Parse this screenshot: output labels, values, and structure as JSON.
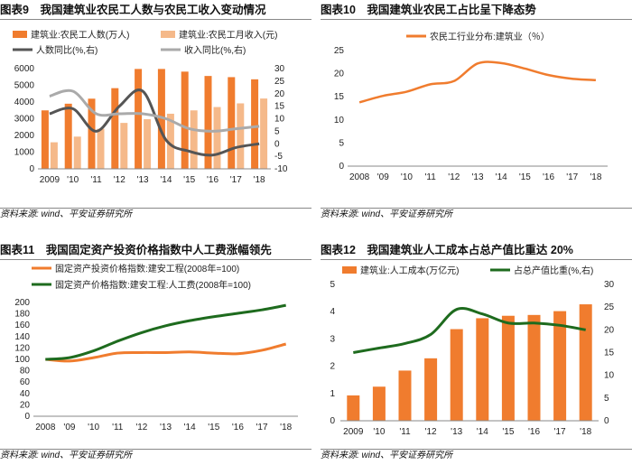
{
  "source_text": "资料来源: wind、平安证券研究所",
  "chart_data": [
    {
      "id": "fig9",
      "type": "bar",
      "title": "图表9　我国建筑业农民工人数与农民工收入变动情况",
      "categories": [
        "2009",
        "'10",
        "'11",
        "'12",
        "'13",
        "'14",
        "'15",
        "'16",
        "'17",
        "'18"
      ],
      "left_axis": {
        "ylim": [
          0,
          6000
        ],
        "ticks": [
          "0",
          "1000",
          "2000",
          "3000",
          "4000",
          "5000",
          "6000"
        ]
      },
      "right_axis": {
        "ylim": [
          -10,
          30
        ],
        "ticks": [
          "-10",
          "-5",
          "0",
          "5",
          "10",
          "15",
          "20",
          "25",
          "30"
        ]
      },
      "series": [
        {
          "name": "建筑业:农民工人数(万人)",
          "kind": "bar",
          "axis": "left",
          "color": "#F07C2E",
          "values": [
            3500,
            3900,
            4200,
            4830,
            5980,
            5980,
            5820,
            5560,
            5490,
            5360
          ]
        },
        {
          "name": "建筑业:农民工月收入(元)",
          "kind": "bar",
          "axis": "left",
          "color": "#F5B98A",
          "values": [
            1590,
            1930,
            2400,
            2750,
            2970,
            3300,
            3500,
            3700,
            3920,
            4210
          ]
        },
        {
          "name": "人数同比(%,右)",
          "kind": "line",
          "axis": "right",
          "color": "#555555",
          "values": [
            12,
            14,
            5,
            15,
            21,
            1.5,
            -3,
            -4.5,
            -1.5,
            0
          ]
        },
        {
          "name": "收入同比(%,右)",
          "kind": "line",
          "axis": "right",
          "color": "#AAAAAA",
          "values": [
            19,
            21,
            12,
            12,
            12,
            10,
            6,
            5,
            6,
            7
          ]
        }
      ]
    },
    {
      "id": "fig10",
      "type": "line",
      "title": "图表10　我国建筑业农民工占比呈下降态势",
      "categories": [
        "2008",
        "'09",
        "'10",
        "'11",
        "'12",
        "'13",
        "'14",
        "'15",
        "'16",
        "'17",
        "'18"
      ],
      "ylim": [
        0,
        25
      ],
      "yticks": [
        "0",
        "5",
        "10",
        "15",
        "20",
        "25"
      ],
      "series": [
        {
          "name": "农民工行业分布:建筑业（％）",
          "color": "#F07C2E",
          "values": [
            13.8,
            15.2,
            16.1,
            17.7,
            18.4,
            22.2,
            22.3,
            21.1,
            19.7,
            18.9,
            18.6
          ]
        }
      ]
    },
    {
      "id": "fig11",
      "type": "line",
      "title": "图表11　我国固定资产投资价格指数中人工费涨幅领先",
      "categories": [
        "2008",
        "'09",
        "'10",
        "'11",
        "'12",
        "'13",
        "'14",
        "'15",
        "'16",
        "'17",
        "'18"
      ],
      "ylim": [
        0,
        200
      ],
      "yticks": [
        "0",
        "20",
        "40",
        "60",
        "80",
        "100",
        "120",
        "140",
        "160",
        "180",
        "200"
      ],
      "series": [
        {
          "name": "固定资产投资价格指数:建安工程(2008年=100)",
          "color": "#F07C2E",
          "values": [
            100,
            97,
            103,
            111,
            112,
            112,
            113,
            111,
            110,
            116,
            127
          ]
        },
        {
          "name": "固定资产价格指数:建安工程:人工费(2008年=100)",
          "color": "#1E6B1E",
          "values": [
            100,
            103,
            115,
            132,
            147,
            159,
            168,
            175,
            181,
            187,
            195
          ]
        }
      ]
    },
    {
      "id": "fig12",
      "type": "bar",
      "title": "图表12　我国建筑业人工成本占总产值比重达 20%",
      "categories": [
        "2009",
        "'10",
        "'11",
        "'12",
        "'13",
        "'14",
        "'15",
        "'16",
        "'17",
        "'18"
      ],
      "left_axis": {
        "ylim": [
          0,
          5
        ],
        "ticks": [
          "0",
          "1",
          "2",
          "3",
          "4",
          "5"
        ]
      },
      "right_axis": {
        "ylim": [
          0,
          30
        ],
        "ticks": [
          "0",
          "5",
          "10",
          "15",
          "20",
          "25",
          "30"
        ]
      },
      "series": [
        {
          "name": "建筑业:人工成本(万亿元)",
          "kind": "bar",
          "axis": "left",
          "color": "#F07C2E",
          "values": [
            0.93,
            1.25,
            1.84,
            2.29,
            3.36,
            3.76,
            3.85,
            3.88,
            4.02,
            4.27
          ]
        },
        {
          "name": "占总产值比重(%,右)",
          "kind": "line",
          "axis": "right",
          "color": "#1E6B1E",
          "values": [
            15,
            16,
            17,
            19,
            24.5,
            23.5,
            21.5,
            21.5,
            21,
            20
          ]
        }
      ]
    }
  ]
}
